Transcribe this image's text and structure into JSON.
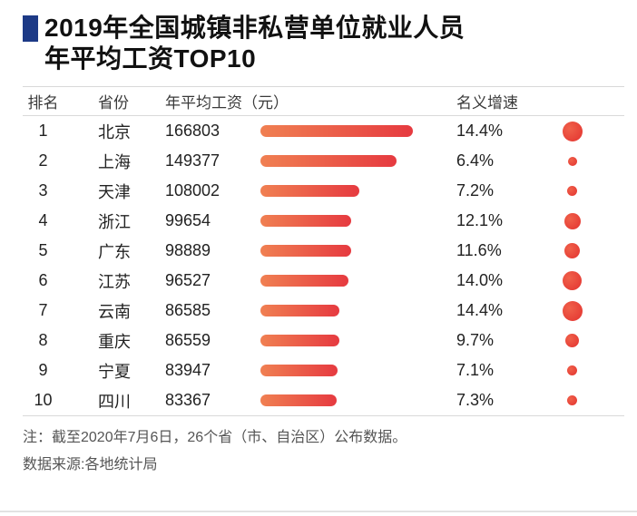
{
  "title": {
    "line1": "2019年全国城镇非私营单位就业人员",
    "line2": "年平均工资TOP10"
  },
  "colors": {
    "title_square": "#1d3a86",
    "bar_gradient_start": "#f08052",
    "bar_gradient_end": "#e63a40",
    "dot_color": "#e3322f",
    "rule_color": "#d9d9d9"
  },
  "table": {
    "headers": {
      "rank": "排名",
      "province": "省份",
      "salary": "年平均工资（元）",
      "growth": "名义增速"
    },
    "rows": [
      {
        "rank": "1",
        "province": "北京",
        "salary": 166803,
        "growth": "14.4%",
        "growth_value": 14.4
      },
      {
        "rank": "2",
        "province": "上海",
        "salary": 149377,
        "growth": "6.4%",
        "growth_value": 6.4
      },
      {
        "rank": "3",
        "province": "天津",
        "salary": 108002,
        "growth": "7.2%",
        "growth_value": 7.2
      },
      {
        "rank": "4",
        "province": "浙江",
        "salary": 99654,
        "growth": "12.1%",
        "growth_value": 12.1
      },
      {
        "rank": "5",
        "province": "广东",
        "salary": 98889,
        "growth": "11.6%",
        "growth_value": 11.6
      },
      {
        "rank": "6",
        "province": "江苏",
        "salary": 96527,
        "growth": "14.0%",
        "growth_value": 14.0
      },
      {
        "rank": "7",
        "province": "云南",
        "salary": 86585,
        "growth": "14.4%",
        "growth_value": 14.4
      },
      {
        "rank": "8",
        "province": "重庆",
        "salary": 86559,
        "growth": "9.7%",
        "growth_value": 9.7
      },
      {
        "rank": "9",
        "province": "宁夏",
        "salary": 83947,
        "growth": "7.1%",
        "growth_value": 7.1
      },
      {
        "rank": "10",
        "province": "四川",
        "salary": 83367,
        "growth": "7.3%",
        "growth_value": 7.3
      }
    ]
  },
  "footer": {
    "note": "注：截至2020年7月6日，26个省（市、自治区）公布数据。",
    "source": "数据来源:各地统计局"
  },
  "chart_data": {
    "type": "bar",
    "orientation": "horizontal",
    "title": "2019年全国城镇非私营单位就业人员年平均工资TOP10",
    "categories": [
      "北京",
      "上海",
      "天津",
      "浙江",
      "广东",
      "江苏",
      "云南",
      "重庆",
      "宁夏",
      "四川"
    ],
    "series": [
      {
        "name": "年平均工资（元）",
        "values": [
          166803,
          149377,
          108002,
          99654,
          98889,
          96527,
          86585,
          86559,
          83947,
          83367
        ]
      },
      {
        "name": "名义增速(%)",
        "values": [
          14.4,
          6.4,
          7.2,
          12.1,
          11.6,
          14.0,
          14.4,
          9.7,
          7.1,
          7.3
        ]
      }
    ],
    "xlabel": "",
    "ylabel": "",
    "value_labels_shown": true,
    "grid": false,
    "legend_position": "none",
    "note": "注：截至2020年7月6日，26个省（市、自治区）公布数据。数据来源:各地统计局"
  }
}
